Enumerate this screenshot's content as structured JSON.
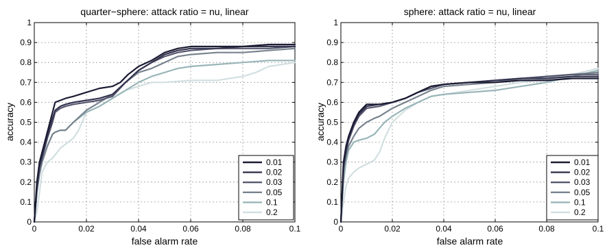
{
  "chart_data": [
    {
      "type": "line",
      "title": "quarter−sphere: attack ratio = nu, linear",
      "xlabel": "false alarm rate",
      "ylabel": "accuracy",
      "xlim": [
        0,
        0.1
      ],
      "ylim": [
        0,
        1
      ],
      "xticks": [
        "0",
        "0.02",
        "0.04",
        "0.06",
        "0.08",
        "0.1"
      ],
      "yticks": [
        "0",
        "0.1",
        "0.2",
        "0.3",
        "0.4",
        "0.5",
        "0.6",
        "0.7",
        "0.8",
        "0.9",
        "1"
      ],
      "grid": true,
      "legend_position": "bottom-right",
      "series": [
        {
          "name": "0.01",
          "color": "#1b1b33",
          "x": [
            0,
            0.001,
            0.002,
            0.003,
            0.005,
            0.007,
            0.008,
            0.01,
            0.012,
            0.015,
            0.02,
            0.025,
            0.03,
            0.033,
            0.036,
            0.04,
            0.045,
            0.05,
            0.055,
            0.06,
            0.07,
            0.08,
            0.09,
            0.1
          ],
          "y": [
            0,
            0.2,
            0.3,
            0.35,
            0.45,
            0.55,
            0.6,
            0.61,
            0.62,
            0.63,
            0.65,
            0.67,
            0.68,
            0.7,
            0.74,
            0.78,
            0.81,
            0.85,
            0.87,
            0.88,
            0.88,
            0.88,
            0.89,
            0.89
          ]
        },
        {
          "name": "0.02",
          "color": "#34344f",
          "x": [
            0,
            0.001,
            0.002,
            0.003,
            0.005,
            0.007,
            0.008,
            0.01,
            0.012,
            0.015,
            0.02,
            0.025,
            0.03,
            0.035,
            0.04,
            0.045,
            0.05,
            0.055,
            0.06,
            0.07,
            0.08,
            0.09,
            0.1
          ],
          "y": [
            0,
            0.18,
            0.28,
            0.33,
            0.43,
            0.52,
            0.56,
            0.58,
            0.59,
            0.6,
            0.61,
            0.62,
            0.64,
            0.7,
            0.76,
            0.8,
            0.84,
            0.86,
            0.87,
            0.87,
            0.88,
            0.88,
            0.88
          ]
        },
        {
          "name": "0.03",
          "color": "#55566e",
          "x": [
            0,
            0.001,
            0.002,
            0.003,
            0.005,
            0.007,
            0.008,
            0.01,
            0.012,
            0.015,
            0.02,
            0.025,
            0.03,
            0.035,
            0.04,
            0.045,
            0.05,
            0.055,
            0.06,
            0.07,
            0.08,
            0.09,
            0.1
          ],
          "y": [
            0,
            0.17,
            0.27,
            0.32,
            0.42,
            0.5,
            0.55,
            0.57,
            0.58,
            0.59,
            0.6,
            0.61,
            0.63,
            0.7,
            0.76,
            0.8,
            0.83,
            0.85,
            0.86,
            0.87,
            0.87,
            0.87,
            0.88
          ]
        },
        {
          "name": "0.05",
          "color": "#77838f",
          "x": [
            0,
            0.001,
            0.002,
            0.003,
            0.005,
            0.007,
            0.008,
            0.01,
            0.012,
            0.015,
            0.02,
            0.025,
            0.03,
            0.035,
            0.04,
            0.045,
            0.05,
            0.055,
            0.06,
            0.07,
            0.08,
            0.09,
            0.1
          ],
          "y": [
            0,
            0.15,
            0.24,
            0.3,
            0.38,
            0.44,
            0.45,
            0.46,
            0.46,
            0.5,
            0.56,
            0.6,
            0.64,
            0.7,
            0.75,
            0.77,
            0.8,
            0.83,
            0.84,
            0.85,
            0.85,
            0.86,
            0.87
          ]
        },
        {
          "name": "0.1",
          "color": "#99b5b8",
          "x": [
            0,
            0.001,
            0.002,
            0.003,
            0.005,
            0.007,
            0.008,
            0.01,
            0.012,
            0.015,
            0.02,
            0.025,
            0.03,
            0.035,
            0.04,
            0.045,
            0.05,
            0.055,
            0.06,
            0.07,
            0.08,
            0.09,
            0.1
          ],
          "y": [
            0,
            0.15,
            0.24,
            0.3,
            0.38,
            0.44,
            0.45,
            0.46,
            0.46,
            0.5,
            0.55,
            0.58,
            0.62,
            0.66,
            0.7,
            0.73,
            0.75,
            0.77,
            0.78,
            0.79,
            0.8,
            0.81,
            0.81
          ]
        },
        {
          "name": "0.2",
          "color": "#d2dfe1",
          "x": [
            0,
            0.001,
            0.002,
            0.003,
            0.005,
            0.007,
            0.01,
            0.013,
            0.015,
            0.017,
            0.019,
            0.02,
            0.025,
            0.03,
            0.035,
            0.04,
            0.045,
            0.05,
            0.06,
            0.07,
            0.075,
            0.08,
            0.085,
            0.09,
            0.1
          ],
          "y": [
            0,
            0.05,
            0.15,
            0.25,
            0.3,
            0.32,
            0.37,
            0.4,
            0.42,
            0.46,
            0.52,
            0.55,
            0.58,
            0.62,
            0.66,
            0.68,
            0.7,
            0.7,
            0.71,
            0.71,
            0.72,
            0.73,
            0.75,
            0.78,
            0.8
          ]
        }
      ]
    },
    {
      "type": "line",
      "title": "sphere: attack ratio = nu, linear",
      "xlabel": "false alarm rate",
      "ylabel": "accuracy",
      "xlim": [
        0,
        0.1
      ],
      "ylim": [
        0,
        1
      ],
      "xticks": [
        "0",
        "0.02",
        "0.04",
        "0.06",
        "0.08",
        "0.1"
      ],
      "yticks": [
        "0",
        "0.1",
        "0.2",
        "0.3",
        "0.4",
        "0.5",
        "0.6",
        "0.7",
        "0.8",
        "0.9",
        "1"
      ],
      "grid": true,
      "legend_position": "bottom-right",
      "series": [
        {
          "name": "0.01",
          "color": "#1b1b33",
          "x": [
            0,
            0.001,
            0.002,
            0.003,
            0.005,
            0.007,
            0.01,
            0.015,
            0.02,
            0.025,
            0.03,
            0.035,
            0.04,
            0.05,
            0.06,
            0.07,
            0.08,
            0.09,
            0.1
          ],
          "y": [
            0,
            0.3,
            0.38,
            0.43,
            0.5,
            0.55,
            0.59,
            0.59,
            0.6,
            0.62,
            0.65,
            0.68,
            0.69,
            0.7,
            0.7,
            0.71,
            0.71,
            0.72,
            0.72
          ]
        },
        {
          "name": "0.02",
          "color": "#34344f",
          "x": [
            0,
            0.001,
            0.002,
            0.003,
            0.005,
            0.007,
            0.01,
            0.015,
            0.02,
            0.025,
            0.03,
            0.035,
            0.04,
            0.05,
            0.06,
            0.07,
            0.08,
            0.09,
            0.1
          ],
          "y": [
            0,
            0.28,
            0.36,
            0.42,
            0.49,
            0.54,
            0.58,
            0.59,
            0.6,
            0.62,
            0.65,
            0.68,
            0.69,
            0.7,
            0.71,
            0.72,
            0.72,
            0.73,
            0.73
          ]
        },
        {
          "name": "0.03",
          "color": "#55566e",
          "x": [
            0,
            0.001,
            0.002,
            0.003,
            0.005,
            0.007,
            0.01,
            0.015,
            0.02,
            0.025,
            0.03,
            0.035,
            0.04,
            0.05,
            0.06,
            0.07,
            0.08,
            0.09,
            0.1
          ],
          "y": [
            0,
            0.27,
            0.35,
            0.41,
            0.48,
            0.53,
            0.57,
            0.58,
            0.6,
            0.62,
            0.65,
            0.67,
            0.69,
            0.7,
            0.71,
            0.72,
            0.73,
            0.74,
            0.74
          ]
        },
        {
          "name": "0.05",
          "color": "#77838f",
          "x": [
            0,
            0.001,
            0.002,
            0.003,
            0.005,
            0.007,
            0.01,
            0.013,
            0.015,
            0.02,
            0.025,
            0.03,
            0.035,
            0.04,
            0.05,
            0.06,
            0.07,
            0.08,
            0.09,
            0.1
          ],
          "y": [
            0,
            0.25,
            0.33,
            0.38,
            0.43,
            0.47,
            0.5,
            0.52,
            0.53,
            0.57,
            0.6,
            0.63,
            0.66,
            0.68,
            0.69,
            0.7,
            0.72,
            0.73,
            0.74,
            0.75
          ]
        },
        {
          "name": "0.1",
          "color": "#99b5b8",
          "x": [
            0,
            0.001,
            0.002,
            0.003,
            0.005,
            0.007,
            0.01,
            0.013,
            0.015,
            0.017,
            0.02,
            0.025,
            0.03,
            0.035,
            0.04,
            0.05,
            0.06,
            0.07,
            0.08,
            0.09,
            0.1
          ],
          "y": [
            0,
            0.2,
            0.3,
            0.36,
            0.4,
            0.41,
            0.42,
            0.44,
            0.47,
            0.5,
            0.53,
            0.57,
            0.6,
            0.63,
            0.64,
            0.65,
            0.66,
            0.68,
            0.7,
            0.73,
            0.76
          ]
        },
        {
          "name": "0.2",
          "color": "#d2dfe1",
          "x": [
            0,
            0.001,
            0.002,
            0.003,
            0.005,
            0.007,
            0.01,
            0.013,
            0.015,
            0.017,
            0.02,
            0.025,
            0.03,
            0.035,
            0.04,
            0.05,
            0.06,
            0.07,
            0.08,
            0.09,
            0.1
          ],
          "y": [
            0,
            0.1,
            0.18,
            0.22,
            0.25,
            0.27,
            0.29,
            0.31,
            0.35,
            0.42,
            0.5,
            0.56,
            0.6,
            0.63,
            0.64,
            0.66,
            0.68,
            0.7,
            0.72,
            0.74,
            0.77
          ]
        }
      ]
    }
  ]
}
